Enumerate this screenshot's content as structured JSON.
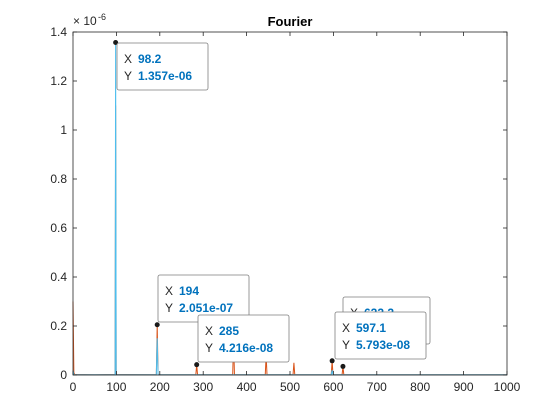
{
  "chart_data": {
    "type": "line",
    "title": "Fourier",
    "xlabel": "",
    "ylabel": "",
    "xlim": [
      0,
      1000
    ],
    "ylim": [
      0,
      1.4e-06
    ],
    "grid": false,
    "x_ticks": [
      "0",
      "100",
      "200",
      "300",
      "400",
      "500",
      "600",
      "700",
      "800",
      "900",
      "1000"
    ],
    "y_ticks": [
      "0",
      "0.2",
      "0.4",
      "0.6",
      "0.8",
      "1",
      "1.2",
      "1.4"
    ],
    "y_exponent": {
      "base": "× 10",
      "power": "-6"
    },
    "series": [
      {
        "color": "#d95319",
        "x": [
          0,
          2,
          4,
          50,
          97,
          98.2,
          99.5,
          192,
          194,
          196,
          283,
          285,
          287,
          368,
          370,
          372,
          443,
          445,
          447,
          507,
          509,
          511,
          595,
          597.1,
          599,
          620,
          622,
          624,
          1000
        ],
        "y": [
          3e-07,
          1e-08,
          2e-09,
          1e-09,
          2e-09,
          1.1e-06,
          2e-09,
          1e-09,
          2.051e-07,
          1e-09,
          1e-09,
          4.216e-08,
          1e-09,
          1e-09,
          1.5e-07,
          1e-09,
          1e-09,
          8e-08,
          1e-09,
          1e-09,
          5e-08,
          1e-09,
          1e-09,
          5.793e-08,
          1e-09,
          1e-09,
          3.5e-08,
          1e-09,
          1e-09
        ]
      },
      {
        "color": "#4dbeee",
        "x": [
          0,
          2,
          50,
          97,
          98.2,
          99.5,
          192,
          194,
          196,
          595,
          597.1,
          599,
          1000
        ],
        "y": [
          2e-08,
          1e-09,
          1e-09,
          1e-09,
          1.357e-06,
          1e-09,
          1e-09,
          1.5e-07,
          1e-09,
          1e-09,
          2e-08,
          1e-09,
          1e-09
        ]
      }
    ],
    "datatips": [
      {
        "x": 98.2,
        "y": 1.357e-06,
        "x_text": "98.2",
        "y_text": "1.357e-06"
      },
      {
        "x": 194,
        "y": 2.051e-07,
        "x_text": "194",
        "y_text": "2.051e-07"
      },
      {
        "x": 285,
        "y": 4.216e-08,
        "x_text": "285",
        "y_text": "4.216e-08"
      },
      {
        "x": 597.1,
        "y": 5.793e-08,
        "x_text": "597.1",
        "y_text": "5.793e-08"
      },
      {
        "x": 622,
        "y": 3.5e-08,
        "x_text": "622.2",
        "y_text": "3.497e-08",
        "occluded": true
      }
    ],
    "datatip_keys": {
      "x": "X",
      "y": "Y"
    },
    "colors": {
      "axis": "#262626",
      "accent": "#0072bd",
      "marker": "#1a1a1a"
    }
  }
}
